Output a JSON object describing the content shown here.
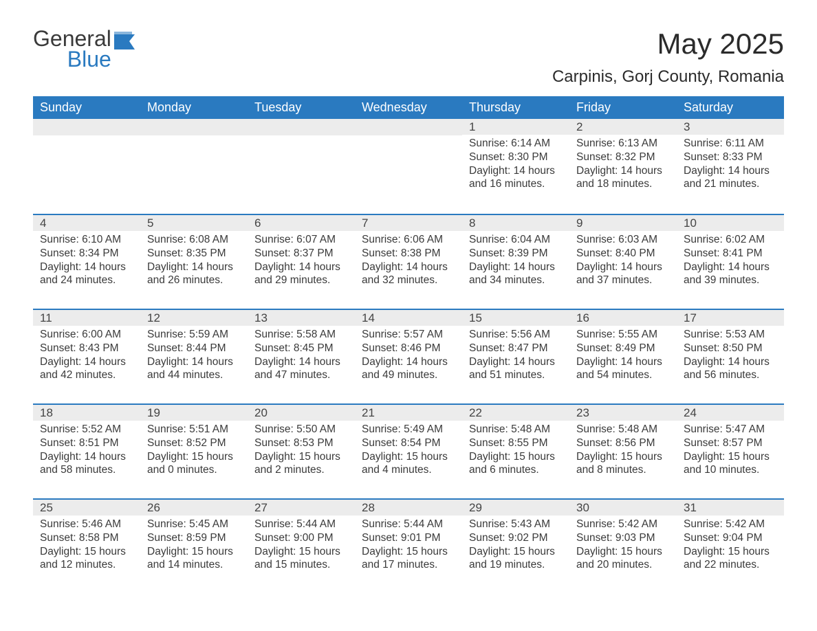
{
  "brand": {
    "name_part1": "General",
    "name_part2": "Blue",
    "flag_color": "#2a7ac0"
  },
  "colors": {
    "header_bg": "#2a7ac0",
    "header_text": "#ffffff",
    "daynum_bg": "#ececec",
    "daynum_border": "#2a7ac0",
    "body_text": "#3a3a3a",
    "page_bg": "#ffffff"
  },
  "typography": {
    "title_fontsize": 42,
    "location_fontsize": 24,
    "dayheader_fontsize": 18,
    "daynum_fontsize": 17,
    "body_fontsize": 15.5
  },
  "title": "May 2025",
  "location": "Carpinis, Gorj County, Romania",
  "day_headers": [
    "Sunday",
    "Monday",
    "Tuesday",
    "Wednesday",
    "Thursday",
    "Friday",
    "Saturday"
  ],
  "weeks": [
    [
      {
        "empty": true
      },
      {
        "empty": true
      },
      {
        "empty": true
      },
      {
        "empty": true
      },
      {
        "day": "1",
        "sunrise": "Sunrise: 6:14 AM",
        "sunset": "Sunset: 8:30 PM",
        "daylight": "Daylight: 14 hours and 16 minutes."
      },
      {
        "day": "2",
        "sunrise": "Sunrise: 6:13 AM",
        "sunset": "Sunset: 8:32 PM",
        "daylight": "Daylight: 14 hours and 18 minutes."
      },
      {
        "day": "3",
        "sunrise": "Sunrise: 6:11 AM",
        "sunset": "Sunset: 8:33 PM",
        "daylight": "Daylight: 14 hours and 21 minutes."
      }
    ],
    [
      {
        "day": "4",
        "sunrise": "Sunrise: 6:10 AM",
        "sunset": "Sunset: 8:34 PM",
        "daylight": "Daylight: 14 hours and 24 minutes."
      },
      {
        "day": "5",
        "sunrise": "Sunrise: 6:08 AM",
        "sunset": "Sunset: 8:35 PM",
        "daylight": "Daylight: 14 hours and 26 minutes."
      },
      {
        "day": "6",
        "sunrise": "Sunrise: 6:07 AM",
        "sunset": "Sunset: 8:37 PM",
        "daylight": "Daylight: 14 hours and 29 minutes."
      },
      {
        "day": "7",
        "sunrise": "Sunrise: 6:06 AM",
        "sunset": "Sunset: 8:38 PM",
        "daylight": "Daylight: 14 hours and 32 minutes."
      },
      {
        "day": "8",
        "sunrise": "Sunrise: 6:04 AM",
        "sunset": "Sunset: 8:39 PM",
        "daylight": "Daylight: 14 hours and 34 minutes."
      },
      {
        "day": "9",
        "sunrise": "Sunrise: 6:03 AM",
        "sunset": "Sunset: 8:40 PM",
        "daylight": "Daylight: 14 hours and 37 minutes."
      },
      {
        "day": "10",
        "sunrise": "Sunrise: 6:02 AM",
        "sunset": "Sunset: 8:41 PM",
        "daylight": "Daylight: 14 hours and 39 minutes."
      }
    ],
    [
      {
        "day": "11",
        "sunrise": "Sunrise: 6:00 AM",
        "sunset": "Sunset: 8:43 PM",
        "daylight": "Daylight: 14 hours and 42 minutes."
      },
      {
        "day": "12",
        "sunrise": "Sunrise: 5:59 AM",
        "sunset": "Sunset: 8:44 PM",
        "daylight": "Daylight: 14 hours and 44 minutes."
      },
      {
        "day": "13",
        "sunrise": "Sunrise: 5:58 AM",
        "sunset": "Sunset: 8:45 PM",
        "daylight": "Daylight: 14 hours and 47 minutes."
      },
      {
        "day": "14",
        "sunrise": "Sunrise: 5:57 AM",
        "sunset": "Sunset: 8:46 PM",
        "daylight": "Daylight: 14 hours and 49 minutes."
      },
      {
        "day": "15",
        "sunrise": "Sunrise: 5:56 AM",
        "sunset": "Sunset: 8:47 PM",
        "daylight": "Daylight: 14 hours and 51 minutes."
      },
      {
        "day": "16",
        "sunrise": "Sunrise: 5:55 AM",
        "sunset": "Sunset: 8:49 PM",
        "daylight": "Daylight: 14 hours and 54 minutes."
      },
      {
        "day": "17",
        "sunrise": "Sunrise: 5:53 AM",
        "sunset": "Sunset: 8:50 PM",
        "daylight": "Daylight: 14 hours and 56 minutes."
      }
    ],
    [
      {
        "day": "18",
        "sunrise": "Sunrise: 5:52 AM",
        "sunset": "Sunset: 8:51 PM",
        "daylight": "Daylight: 14 hours and 58 minutes."
      },
      {
        "day": "19",
        "sunrise": "Sunrise: 5:51 AM",
        "sunset": "Sunset: 8:52 PM",
        "daylight": "Daylight: 15 hours and 0 minutes."
      },
      {
        "day": "20",
        "sunrise": "Sunrise: 5:50 AM",
        "sunset": "Sunset: 8:53 PM",
        "daylight": "Daylight: 15 hours and 2 minutes."
      },
      {
        "day": "21",
        "sunrise": "Sunrise: 5:49 AM",
        "sunset": "Sunset: 8:54 PM",
        "daylight": "Daylight: 15 hours and 4 minutes."
      },
      {
        "day": "22",
        "sunrise": "Sunrise: 5:48 AM",
        "sunset": "Sunset: 8:55 PM",
        "daylight": "Daylight: 15 hours and 6 minutes."
      },
      {
        "day": "23",
        "sunrise": "Sunrise: 5:48 AM",
        "sunset": "Sunset: 8:56 PM",
        "daylight": "Daylight: 15 hours and 8 minutes."
      },
      {
        "day": "24",
        "sunrise": "Sunrise: 5:47 AM",
        "sunset": "Sunset: 8:57 PM",
        "daylight": "Daylight: 15 hours and 10 minutes."
      }
    ],
    [
      {
        "day": "25",
        "sunrise": "Sunrise: 5:46 AM",
        "sunset": "Sunset: 8:58 PM",
        "daylight": "Daylight: 15 hours and 12 minutes."
      },
      {
        "day": "26",
        "sunrise": "Sunrise: 5:45 AM",
        "sunset": "Sunset: 8:59 PM",
        "daylight": "Daylight: 15 hours and 14 minutes."
      },
      {
        "day": "27",
        "sunrise": "Sunrise: 5:44 AM",
        "sunset": "Sunset: 9:00 PM",
        "daylight": "Daylight: 15 hours and 15 minutes."
      },
      {
        "day": "28",
        "sunrise": "Sunrise: 5:44 AM",
        "sunset": "Sunset: 9:01 PM",
        "daylight": "Daylight: 15 hours and 17 minutes."
      },
      {
        "day": "29",
        "sunrise": "Sunrise: 5:43 AM",
        "sunset": "Sunset: 9:02 PM",
        "daylight": "Daylight: 15 hours and 19 minutes."
      },
      {
        "day": "30",
        "sunrise": "Sunrise: 5:42 AM",
        "sunset": "Sunset: 9:03 PM",
        "daylight": "Daylight: 15 hours and 20 minutes."
      },
      {
        "day": "31",
        "sunrise": "Sunrise: 5:42 AM",
        "sunset": "Sunset: 9:04 PM",
        "daylight": "Daylight: 15 hours and 22 minutes."
      }
    ]
  ]
}
